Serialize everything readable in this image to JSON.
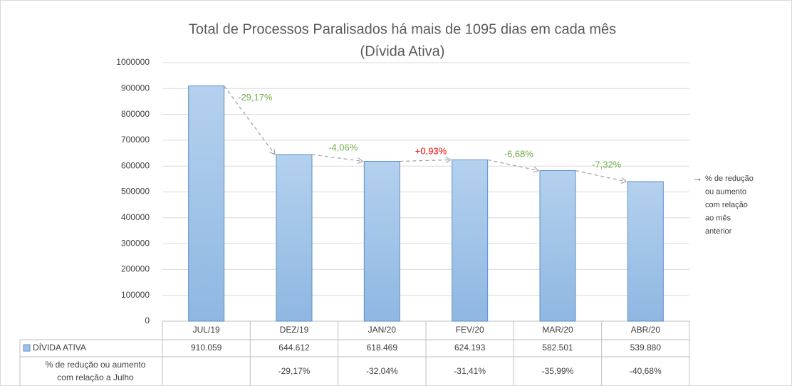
{
  "chart_data": {
    "type": "bar",
    "title": [
      "Total de Processos Paralisados há mais de 1095 dias em cada mês",
      "(Dívida Ativa)"
    ],
    "categories": [
      "JUL/19",
      "DEZ/19",
      "JAN/20",
      "FEV/20",
      "MAR/20",
      "ABR/20"
    ],
    "series": [
      {
        "name": "DÍVIDA ATIVA",
        "color": "#9fc2e7",
        "stroke": "#5b8fc9",
        "values": [
          910059,
          644612,
          618469,
          624193,
          582501,
          539880
        ],
        "value_labels": [
          "910.059",
          "644.612",
          "618.469",
          "624.193",
          "582.501",
          "539.880"
        ]
      }
    ],
    "ylim": [
      0,
      1000000
    ],
    "yticks": [
      0,
      100000,
      200000,
      300000,
      400000,
      500000,
      600000,
      700000,
      800000,
      900000,
      1000000
    ],
    "grid": true,
    "annotations": [
      {
        "text": "-29,17%",
        "color": "#70ad47"
      },
      {
        "text": "-4,06%",
        "color": "#70ad47"
      },
      {
        "text": "+0,93%",
        "color": "#ff0000"
      },
      {
        "text": "-6,68%",
        "color": "#70ad47"
      },
      {
        "text": "-7,32%",
        "color": "#70ad47"
      }
    ],
    "side_note": [
      "% de redução",
      "ou aumento",
      "com relação",
      "ao mês",
      "anterior"
    ],
    "table_row2_label": [
      "% de redução ou aumento",
      "com relação a Julho"
    ],
    "table_row2": [
      null,
      "-29,17%",
      "-32,04%",
      "-31,41%",
      "-35,99%",
      "-40,68%"
    ]
  }
}
